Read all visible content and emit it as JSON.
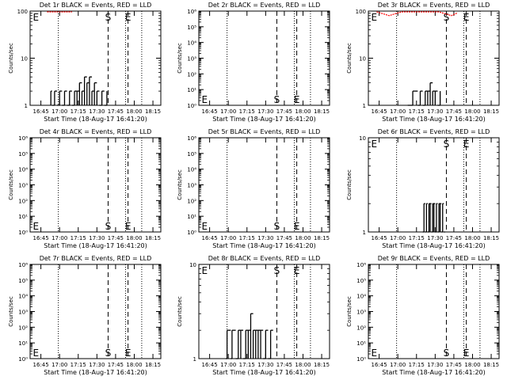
{
  "chart_data": [
    {
      "type": "line",
      "title": "Det 1r BLACK = Events, RED = LLD",
      "xlabel": "Start Time (18-Aug-17 16:41:20)",
      "ylabel": "Counts/sec",
      "yscale": "log",
      "ylim": [
        1,
        100
      ],
      "xlim_minutes": [
        -5,
        100
      ],
      "x_tick_labels": [
        "16:45",
        "17:00",
        "17:15",
        "17:30",
        "17:45",
        "18:00",
        "18:15"
      ],
      "y_tick_labels": [
        "1",
        "10",
        "100"
      ],
      "y_ticks": [
        1,
        10,
        100
      ],
      "dotted_vlines": [
        "16:59",
        "17:53",
        "18:06"
      ],
      "dashed_vlines": [
        "17:39",
        "17:55"
      ],
      "markers": [
        {
          "label": "E",
          "x": "16:41",
          "y": 100
        },
        {
          "label": "S",
          "x": "17:39",
          "y": 100
        },
        {
          "label": "E",
          "x": "17:55",
          "y": 100
        }
      ],
      "series": [
        {
          "color": "#000000",
          "x": [
            "16:53",
            "16:54",
            "16:56",
            "16:58",
            "17:00",
            "17:02",
            "17:04",
            "17:06",
            "17:08",
            "17:10",
            "17:12",
            "17:14",
            "17:16",
            "17:18",
            "17:20",
            "17:22",
            "17:24",
            "17:26",
            "17:28",
            "17:30",
            "17:32",
            "17:34",
            "17:36",
            "17:38"
          ],
          "y": [
            2,
            1,
            2,
            1,
            2,
            1,
            2,
            1,
            2,
            1,
            2,
            2,
            3,
            2,
            4,
            3,
            4,
            2,
            3,
            2,
            1,
            2,
            1,
            2
          ]
        },
        {
          "color": "#ff0000",
          "x": [
            "16:50",
            "16:55",
            "17:00",
            "17:05",
            "17:10"
          ],
          "y": [
            100,
            98,
            96,
            98,
            100
          ]
        }
      ]
    },
    {
      "type": "line",
      "title": "Det 2r BLACK = Events, RED = LLD",
      "xlabel": "Start Time (18-Aug-17 16:41:20)",
      "ylabel": "Counts/sec",
      "yscale": "log",
      "ylim": [
        1,
        1000000
      ],
      "xlim_minutes": [
        -5,
        100
      ],
      "x_tick_labels": [
        "16:45",
        "17:00",
        "17:15",
        "17:30",
        "17:45",
        "18:00",
        "18:15"
      ],
      "y_tick_labels": [
        "10⁰",
        "10¹",
        "10²",
        "10³",
        "10⁴",
        "10⁵",
        "10⁶"
      ],
      "y_ticks": [
        1,
        10,
        100,
        1000,
        10000,
        100000,
        1000000
      ],
      "dotted_vlines": [
        "16:59",
        "17:53",
        "18:06"
      ],
      "dashed_vlines": [
        "17:39",
        "17:55"
      ],
      "markers": [
        {
          "label": "E",
          "x": "16:41",
          "y": 1
        },
        {
          "label": "S",
          "x": "17:39",
          "y": 1
        },
        {
          "label": "E",
          "x": "17:55",
          "y": 1
        }
      ],
      "series": []
    },
    {
      "type": "line",
      "title": "Det 3r BLACK = Events, RED = LLD",
      "xlabel": "Start Time (18-Aug-17 16:41:20)",
      "ylabel": "Counts/sec",
      "yscale": "log",
      "ylim": [
        1,
        100
      ],
      "xlim_minutes": [
        -5,
        100
      ],
      "x_tick_labels": [
        "16:45",
        "17:00",
        "17:15",
        "17:30",
        "17:45",
        "18:00",
        "18:15"
      ],
      "y_tick_labels": [
        "1",
        "10",
        "100"
      ],
      "y_ticks": [
        1,
        10,
        100
      ],
      "dotted_vlines": [
        "16:59",
        "17:53",
        "18:06"
      ],
      "dashed_vlines": [
        "17:39",
        "17:55"
      ],
      "markers": [
        {
          "label": "E",
          "x": "16:41",
          "y": 100
        },
        {
          "label": "S",
          "x": "17:39",
          "y": 100
        },
        {
          "label": "E",
          "x": "17:55",
          "y": 100
        }
      ],
      "series": [
        {
          "color": "#000000",
          "x": [
            "17:08",
            "17:12",
            "17:16",
            "17:18",
            "17:20",
            "17:22",
            "17:24",
            "17:26",
            "17:28",
            "17:30",
            "17:32",
            "17:34"
          ],
          "y": [
            1,
            2,
            1,
            2,
            1,
            2,
            2,
            3,
            2,
            2,
            1,
            2
          ]
        },
        {
          "color": "#ff0000",
          "x": [
            "16:43",
            "16:48",
            "16:53",
            "16:58",
            "17:03",
            "17:08",
            "17:13",
            "17:18",
            "17:23",
            "17:28",
            "17:33",
            "17:38",
            "17:43",
            "17:48"
          ],
          "y": [
            98,
            88,
            80,
            88,
            98,
            100,
            100,
            100,
            100,
            100,
            98,
            88,
            80,
            92
          ]
        }
      ]
    },
    {
      "type": "line",
      "title": "Det 4r BLACK = Events, RED = LLD",
      "xlabel": "Start Time (18-Aug-17 16:41:20)",
      "ylabel": "Counts/sec",
      "yscale": "log",
      "ylim": [
        1,
        1000000
      ],
      "xlim_minutes": [
        -5,
        100
      ],
      "x_tick_labels": [
        "16:45",
        "17:00",
        "17:15",
        "17:30",
        "17:45",
        "18:00",
        "18:15"
      ],
      "y_tick_labels": [
        "10⁰",
        "10¹",
        "10²",
        "10³",
        "10⁴",
        "10⁵",
        "10⁶"
      ],
      "y_ticks": [
        1,
        10,
        100,
        1000,
        10000,
        100000,
        1000000
      ],
      "dotted_vlines": [
        "16:59",
        "17:53",
        "18:06"
      ],
      "dashed_vlines": [
        "17:39",
        "17:55"
      ],
      "markers": [
        {
          "label": "E",
          "x": "16:41",
          "y": 1
        },
        {
          "label": "S",
          "x": "17:39",
          "y": 1
        },
        {
          "label": "E",
          "x": "17:55",
          "y": 1
        }
      ],
      "series": []
    },
    {
      "type": "line",
      "title": "Det 5r BLACK = Events, RED = LLD",
      "xlabel": "Start Time (18-Aug-17 16:41:20)",
      "ylabel": "Counts/sec",
      "yscale": "log",
      "ylim": [
        1,
        1000000
      ],
      "xlim_minutes": [
        -5,
        100
      ],
      "x_tick_labels": [
        "16:45",
        "17:00",
        "17:15",
        "17:30",
        "17:45",
        "18:00",
        "18:15"
      ],
      "y_tick_labels": [
        "10⁰",
        "10¹",
        "10²",
        "10³",
        "10⁴",
        "10⁵",
        "10⁶"
      ],
      "y_ticks": [
        1,
        10,
        100,
        1000,
        10000,
        100000,
        1000000
      ],
      "dotted_vlines": [
        "16:59",
        "17:53",
        "18:06"
      ],
      "dashed_vlines": [
        "17:39",
        "17:55"
      ],
      "markers": [
        {
          "label": "E",
          "x": "16:41",
          "y": 1
        },
        {
          "label": "S",
          "x": "17:39",
          "y": 1
        },
        {
          "label": "E",
          "x": "17:55",
          "y": 1
        }
      ],
      "series": []
    },
    {
      "type": "line",
      "title": "Det 6r BLACK = Events, RED = LLD",
      "xlabel": "Start Time (18-Aug-17 16:41:20)",
      "ylabel": "Counts/sec",
      "yscale": "log",
      "ylim": [
        1,
        10
      ],
      "xlim_minutes": [
        -5,
        100
      ],
      "x_tick_labels": [
        "16:45",
        "17:00",
        "17:15",
        "17:30",
        "17:45",
        "18:00",
        "18:15"
      ],
      "y_tick_labels": [
        "1",
        "10"
      ],
      "y_ticks": [
        1,
        10
      ],
      "dotted_vlines": [
        "16:59",
        "17:53",
        "18:06"
      ],
      "dashed_vlines": [
        "17:39",
        "17:55"
      ],
      "markers": [
        {
          "label": "E",
          "x": "16:41",
          "y": 10
        },
        {
          "label": "S",
          "x": "17:39",
          "y": 10
        },
        {
          "label": "E",
          "x": "17:55",
          "y": 10
        }
      ],
      "series": [
        {
          "color": "#000000",
          "x": [
            "17:20",
            "17:21",
            "17:22",
            "17:23",
            "17:24",
            "17:25",
            "17:26",
            "17:27",
            "17:28",
            "17:29",
            "17:30",
            "17:31",
            "17:32",
            "17:33",
            "17:34",
            "17:35",
            "17:36",
            "17:37",
            "17:38"
          ],
          "y": [
            1,
            2,
            1,
            2,
            1,
            2,
            2,
            1,
            2,
            2,
            1,
            2,
            1,
            2,
            2,
            1,
            2,
            1,
            1
          ]
        }
      ]
    },
    {
      "type": "line",
      "title": "Det 7r BLACK = Events, RED = LLD",
      "xlabel": "Start Time (18-Aug-17 16:41:20)",
      "ylabel": "Counts/sec",
      "yscale": "log",
      "ylim": [
        1,
        1000000
      ],
      "xlim_minutes": [
        -5,
        100
      ],
      "x_tick_labels": [
        "16:45",
        "17:00",
        "17:15",
        "17:30",
        "17:45",
        "18:00",
        "18:15"
      ],
      "y_tick_labels": [
        "10⁰",
        "10¹",
        "10²",
        "10³",
        "10⁴",
        "10⁵",
        "10⁶"
      ],
      "y_ticks": [
        1,
        10,
        100,
        1000,
        10000,
        100000,
        1000000
      ],
      "dotted_vlines": [
        "16:59",
        "17:53",
        "18:06"
      ],
      "dashed_vlines": [
        "17:39",
        "17:55"
      ],
      "markers": [
        {
          "label": "E",
          "x": "16:41",
          "y": 1
        },
        {
          "label": "S",
          "x": "17:39",
          "y": 1
        },
        {
          "label": "E",
          "x": "17:55",
          "y": 1
        }
      ],
      "series": []
    },
    {
      "type": "line",
      "title": "Det 8r BLACK = Events, RED = LLD",
      "xlabel": "Start Time (18-Aug-17 16:41:20)",
      "ylabel": "Counts/sec",
      "yscale": "log",
      "ylim": [
        1,
        10
      ],
      "xlim_minutes": [
        -5,
        100
      ],
      "x_tick_labels": [
        "16:45",
        "17:00",
        "17:15",
        "17:30",
        "17:45",
        "18:00",
        "18:15"
      ],
      "y_tick_labels": [
        "1",
        "10"
      ],
      "y_ticks": [
        1,
        10
      ],
      "dotted_vlines": [
        "16:59",
        "17:53",
        "18:06"
      ],
      "dashed_vlines": [
        "17:39",
        "17:55"
      ],
      "markers": [
        {
          "label": "E",
          "x": "16:41",
          "y": 10
        },
        {
          "label": "S",
          "x": "17:39",
          "y": 10
        },
        {
          "label": "E",
          "x": "17:55",
          "y": 10
        }
      ],
      "series": [
        {
          "color": "#000000",
          "x": [
            "16:58",
            "16:59",
            "17:02",
            "17:03",
            "17:06",
            "17:08",
            "17:10",
            "17:12",
            "17:14",
            "17:16",
            "17:18",
            "17:20",
            "17:22",
            "17:24",
            "17:26",
            "17:28",
            "17:30",
            "17:32",
            "17:34",
            "17:36"
          ],
          "y": [
            1,
            2,
            1,
            2,
            1,
            2,
            2,
            1,
            2,
            2,
            3,
            2,
            2,
            2,
            2,
            1,
            2,
            1,
            2,
            1
          ]
        }
      ]
    },
    {
      "type": "line",
      "title": "Det 9r BLACK = Events, RED = LLD",
      "xlabel": "Start Time (18-Aug-17 16:41:20)",
      "ylabel": "Counts/sec",
      "yscale": "log",
      "ylim": [
        1,
        1000000
      ],
      "xlim_minutes": [
        -5,
        100
      ],
      "x_tick_labels": [
        "16:45",
        "17:00",
        "17:15",
        "17:30",
        "17:45",
        "18:00",
        "18:15"
      ],
      "y_tick_labels": [
        "10⁰",
        "10¹",
        "10²",
        "10³",
        "10⁴",
        "10⁵",
        "10⁶"
      ],
      "y_ticks": [
        1,
        10,
        100,
        1000,
        10000,
        100000,
        1000000
      ],
      "dotted_vlines": [
        "16:59",
        "17:53",
        "18:06"
      ],
      "dashed_vlines": [
        "17:39",
        "17:55"
      ],
      "markers": [
        {
          "label": "E",
          "x": "16:41",
          "y": 1
        },
        {
          "label": "S",
          "x": "17:39",
          "y": 1
        },
        {
          "label": "E",
          "x": "17:55",
          "y": 1
        }
      ],
      "series": []
    }
  ]
}
